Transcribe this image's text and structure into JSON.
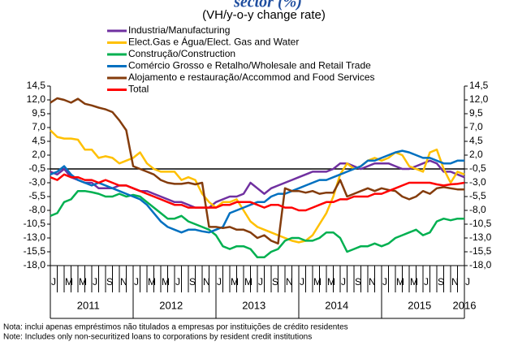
{
  "chart_data": {
    "type": "line",
    "title": "sector (%)",
    "subtitle": "(VH/y-o-y change rate)",
    "categories": [
      "J",
      null,
      "M",
      null,
      "M",
      null,
      "J",
      null,
      "S",
      null,
      "N",
      null,
      "J",
      null,
      "M",
      null,
      "M",
      null,
      "J",
      null,
      "S",
      null,
      "N",
      null,
      "J",
      null,
      "M",
      null,
      "M",
      null,
      "J",
      null,
      "S",
      null,
      "N",
      null,
      "J",
      null,
      "M",
      null,
      "M",
      null,
      "J",
      null,
      "S",
      null,
      "N",
      null,
      "J",
      null,
      "M",
      null,
      "M",
      null,
      "J",
      null,
      "S",
      null,
      "N",
      null,
      "J"
    ],
    "year_labels": [
      "2011",
      "2012",
      "2013",
      "2014",
      "2015",
      "2016"
    ],
    "ylim": [
      -18,
      14.5
    ],
    "yticks": [
      {
        "value": 14.5,
        "label": "14,5"
      },
      {
        "value": 12,
        "label": "12,0"
      },
      {
        "value": 9.5,
        "label": "9,5"
      },
      {
        "value": 7,
        "label": "7,0"
      },
      {
        "value": 4.5,
        "label": "4,5"
      },
      {
        "value": 2,
        "label": "2,0"
      },
      {
        "value": -0.5,
        "label": "-0,5"
      },
      {
        "value": -3,
        "label": "-3,0"
      },
      {
        "value": -5.5,
        "label": "-5,5"
      },
      {
        "value": -8,
        "label": "-8,0"
      },
      {
        "value": -10.5,
        "label": "-10,5"
      },
      {
        "value": -13,
        "label": "-13,0"
      },
      {
        "value": -15.5,
        "label": "-15,5"
      },
      {
        "value": -18,
        "label": "-18,0"
      }
    ],
    "series": [
      {
        "name": "Industria/Manufacturing",
        "color": "#7030a0",
        "values": [
          -1.0,
          -1.5,
          -0.5,
          -2.0,
          -2.5,
          -3.0,
          -3.0,
          -4.0,
          -4.0,
          -4.0,
          -3.5,
          -3.5,
          -4.0,
          -4.5,
          -4.5,
          -5.0,
          -5.5,
          -6.0,
          -6.5,
          -6.5,
          -7.0,
          -7.5,
          -7.5,
          -7.5,
          -6.5,
          -6.0,
          -5.5,
          -5.5,
          -5.0,
          -3.0,
          -4.0,
          -5.0,
          -4.0,
          -3.5,
          -3.0,
          -2.5,
          -2.0,
          -1.5,
          -1.0,
          -1.0,
          -1.0,
          -0.5,
          0.5,
          0.5,
          0.0,
          -0.5,
          0.0,
          0.5,
          0.5,
          0.5,
          0.0,
          -0.5,
          -0.5,
          0.0,
          0.5,
          1.0,
          0.5,
          -1.0,
          -1.0,
          -1.5,
          -2.0
        ]
      },
      {
        "name": "Elect.Gas e Água/Elect. Gas and Water",
        "color": "#ffc000",
        "values": [
          6.5,
          5.3,
          5.0,
          5.0,
          4.8,
          3.0,
          3.0,
          1.5,
          1.8,
          1.5,
          0.5,
          1.0,
          1.5,
          2.5,
          0.5,
          -0.5,
          -1.0,
          -1.0,
          -1.0,
          -2.5,
          -2.0,
          -2.5,
          -5.0,
          -6.5,
          -7.5,
          -6.5,
          -6.5,
          -6.0,
          -8.0,
          -10.0,
          -11.0,
          -11.5,
          -12.0,
          -12.5,
          -13.0,
          -13.5,
          -13.8,
          -13.5,
          -12.5,
          -10.5,
          -8.5,
          -5.5,
          -1.5,
          0.5,
          -0.5,
          0.0,
          1.0,
          1.5,
          1.0,
          1.5,
          2.5,
          2.0,
          0.0,
          -0.5,
          -1.0,
          2.5,
          3.0,
          -0.5,
          -3.0,
          -1.0,
          -1.5
        ]
      },
      {
        "name": "Construção/Construction",
        "color": "#00b050",
        "values": [
          -9.0,
          -8.5,
          -6.5,
          -6.0,
          -4.5,
          -4.5,
          -4.7,
          -5.0,
          -5.5,
          -5.5,
          -5.0,
          -5.5,
          -5.2,
          -5.5,
          -6.5,
          -7.5,
          -8.5,
          -9.5,
          -9.5,
          -9.0,
          -10.0,
          -10.5,
          -11.0,
          -11.5,
          -12.5,
          -14.5,
          -15.0,
          -14.5,
          -14.5,
          -15.0,
          -16.5,
          -16.5,
          -15.5,
          -15.0,
          -13.5,
          -13.0,
          -13.0,
          -13.5,
          -13.5,
          -13.0,
          -12.0,
          -12.0,
          -13.0,
          -15.5,
          -15.0,
          -14.5,
          -14.5,
          -14.0,
          -14.5,
          -14.0,
          -13.0,
          -12.5,
          -12.0,
          -11.5,
          -12.5,
          -12.0,
          -10.0,
          -9.5,
          -9.8,
          -9.5,
          -9.5
        ]
      },
      {
        "name": "Comércio Grosso e Retalho/Wholesale and Retail Trade",
        "color": "#0070c0",
        "values": [
          -1.5,
          -1.0,
          0.0,
          -1.5,
          -2.5,
          -3.0,
          -3.5,
          -3.0,
          -3.5,
          -4.0,
          -4.5,
          -5.0,
          -5.5,
          -6.0,
          -7.0,
          -8.5,
          -10.0,
          -11.0,
          -11.5,
          -12.0,
          -11.5,
          -11.5,
          -11.8,
          -12.0,
          -11.5,
          -11.0,
          -8.5,
          -8.0,
          -7.5,
          -7.0,
          -6.5,
          -6.5,
          -5.5,
          -5.0,
          -5.0,
          -4.5,
          -4.0,
          -3.5,
          -3.0,
          -2.5,
          -2.5,
          -2.0,
          -1.5,
          -1.0,
          -0.5,
          0.0,
          1.0,
          1.0,
          1.5,
          2.0,
          2.5,
          2.8,
          2.5,
          2.0,
          1.5,
          1.5,
          1.0,
          0.5,
          0.5,
          1.0,
          1.0
        ]
      },
      {
        "name": "Alojamento e restauração/Accommod and Food Services",
        "color": "#843c0c",
        "values": [
          11.5,
          12.3,
          12.0,
          11.5,
          12.2,
          11.3,
          11.0,
          10.6,
          10.3,
          9.8,
          8.3,
          6.5,
          0.0,
          -0.5,
          -1.0,
          -1.5,
          -2.5,
          -3.0,
          -3.2,
          -3.2,
          -3.0,
          -3.3,
          -3.0,
          -11.0,
          -11.0,
          -11.2,
          -11.0,
          -11.5,
          -11.5,
          -12.0,
          -13.0,
          -12.5,
          -13.5,
          -14.0,
          -4.0,
          -4.5,
          -4.5,
          -4.8,
          -4.5,
          -5.0,
          -4.8,
          -4.8,
          -2.5,
          -5.5,
          -5.0,
          -4.5,
          -4.0,
          -4.5,
          -4.0,
          -4.3,
          -4.5,
          -5.5,
          -6.0,
          -5.5,
          -4.5,
          -5.0,
          -4.0,
          -3.8,
          -4.0,
          -4.2,
          -4.2
        ]
      },
      {
        "name": "Total",
        "color": "#ff0000",
        "values": [
          -2.0,
          -2.5,
          -1.5,
          -2.0,
          -2.0,
          -2.5,
          -2.5,
          -3.0,
          -2.5,
          -3.0,
          -3.5,
          -3.5,
          -4.0,
          -4.5,
          -5.0,
          -5.5,
          -6.0,
          -6.5,
          -7.0,
          -7.0,
          -7.5,
          -7.5,
          -7.5,
          -7.5,
          -7.5,
          -7.0,
          -7.0,
          -6.5,
          -6.5,
          -6.5,
          -7.0,
          -7.5,
          -7.0,
          -7.0,
          -7.5,
          -7.5,
          -8.0,
          -8.0,
          -7.5,
          -7.0,
          -6.5,
          -6.5,
          -6.0,
          -6.0,
          -5.5,
          -5.5,
          -5.5,
          -5.0,
          -5.0,
          -4.5,
          -4.0,
          -3.5,
          -3.0,
          -3.0,
          -3.0,
          -3.0,
          -3.3,
          -3.5,
          -3.3,
          -3.2,
          -3.0
        ]
      }
    ],
    "notes": [
      "Nota: inclui apenas empréstimos não titulados a empresas por instituições de crédito residentes",
      "Note: Includes only non-securitized loans to corporations by resident credit institutions"
    ]
  }
}
